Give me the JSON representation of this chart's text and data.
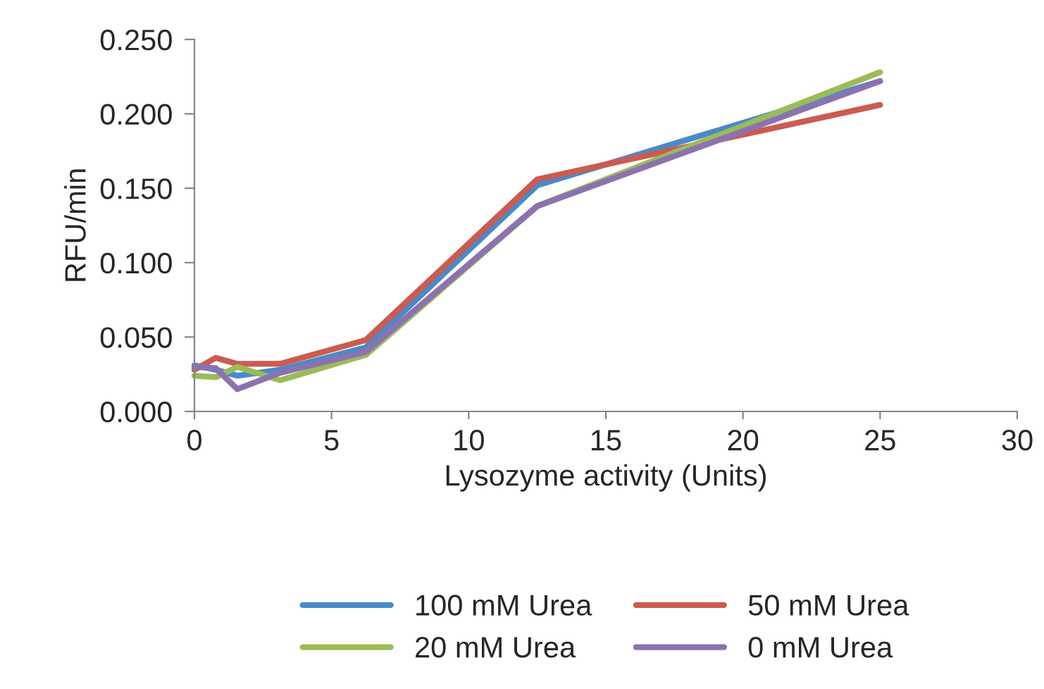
{
  "chart_data": {
    "type": "line",
    "xlabel": "Lysozyme activity (Units)",
    "ylabel": "RFU/min",
    "x": [
      0,
      0.78,
      1.56,
      3.125,
      6.25,
      12.5,
      25
    ],
    "series": [
      {
        "name": "100 mM Urea",
        "color": "#4a8ac9",
        "values": [
          0.031,
          0.028,
          0.024,
          0.028,
          0.043,
          0.152,
          0.222
        ]
      },
      {
        "name": "50 mM Urea",
        "color": "#cc5b50",
        "values": [
          0.028,
          0.036,
          0.032,
          0.032,
          0.048,
          0.156,
          0.206
        ]
      },
      {
        "name": "20 mM Urea",
        "color": "#9bbb59",
        "values": [
          0.024,
          0.023,
          0.03,
          0.021,
          0.038,
          0.138,
          0.228
        ]
      },
      {
        "name": "0 mM Urea",
        "color": "#8c72b0",
        "values": [
          0.03,
          0.029,
          0.015,
          0.026,
          0.04,
          0.138,
          0.222
        ]
      }
    ],
    "xlim": [
      0,
      30
    ],
    "xticks": [
      0,
      5,
      10,
      15,
      20,
      25,
      30
    ],
    "ylim": [
      0,
      0.25
    ],
    "yticks": [
      {
        "value": 0,
        "label": "0.000"
      },
      {
        "value": 0.05,
        "label": "0.050"
      },
      {
        "value": 0.1,
        "label": "0.100"
      },
      {
        "value": 0.15,
        "label": "0.150"
      },
      {
        "value": 0.2,
        "label": "0.200"
      },
      {
        "value": 0.25,
        "label": "0.250"
      }
    ],
    "grid": false,
    "legend": "bottom",
    "line_style": "solid",
    "marker": "none"
  }
}
